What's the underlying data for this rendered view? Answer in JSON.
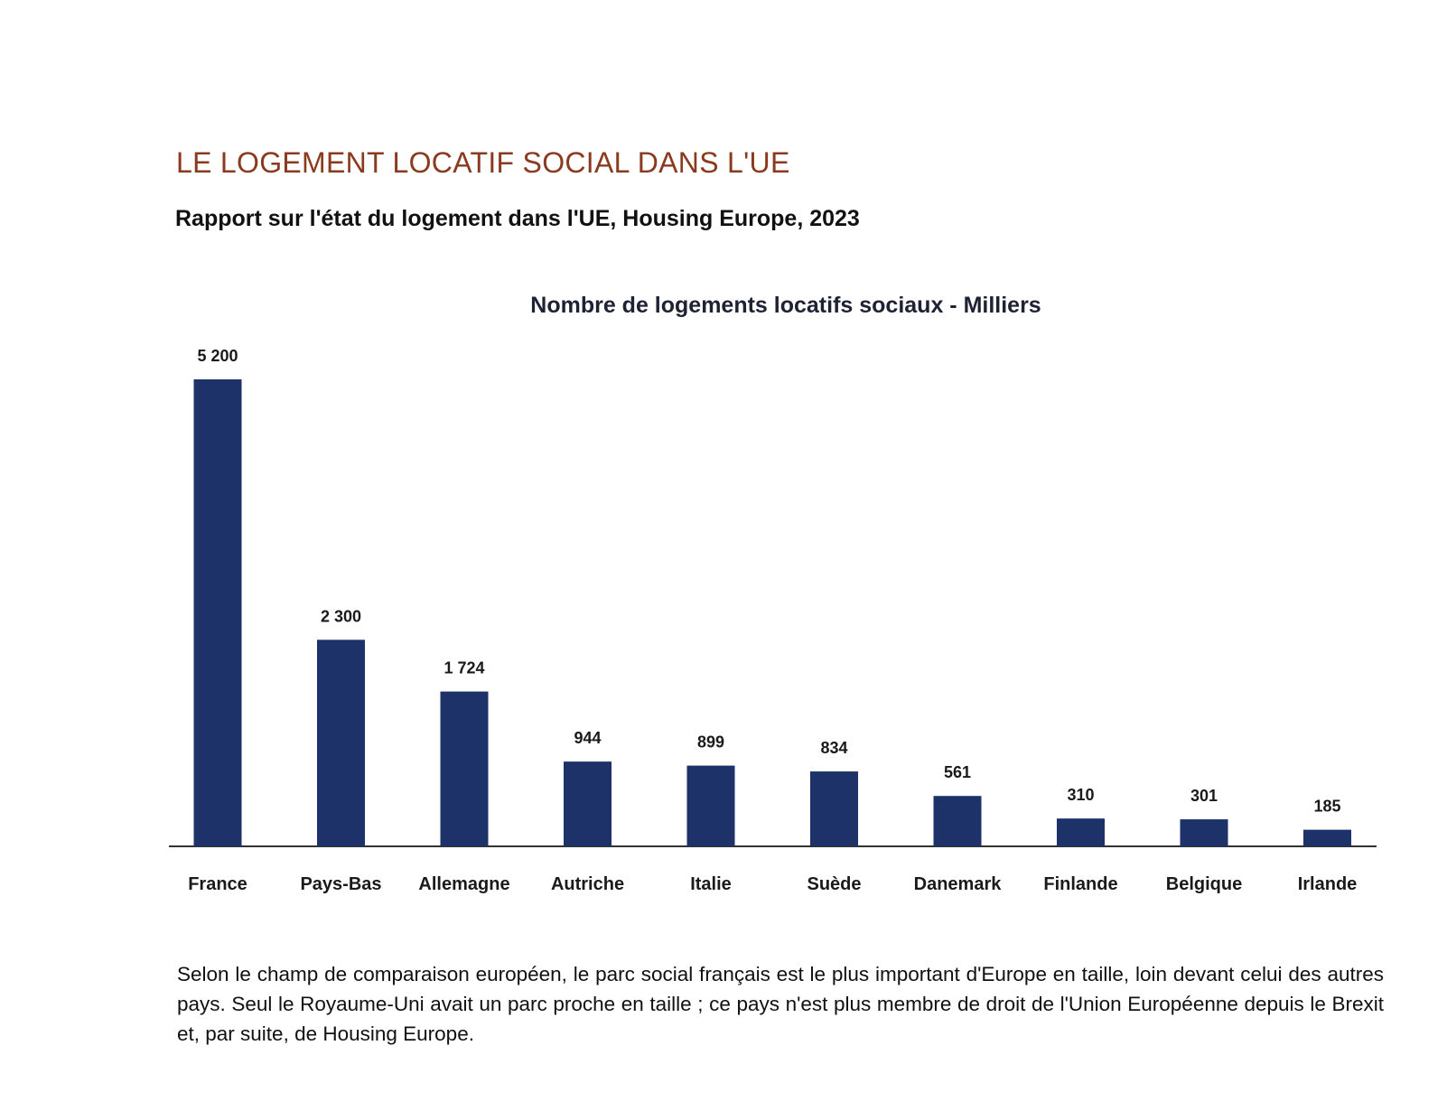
{
  "header": {
    "title": "LE LOGEMENT LOCATIF SOCIAL DANS L'UE",
    "subtitle": "Rapport sur l'état du logement dans l'UE, Housing Europe, 2023"
  },
  "chart_data": {
    "type": "bar",
    "title": "Nombre de logements locatifs sociaux - Milliers",
    "categories": [
      "France",
      "Pays-Bas",
      "Allemagne",
      "Autriche",
      "Italie",
      "Suède",
      "Danemark",
      "Finlande",
      "Belgique",
      "Irlande"
    ],
    "values": [
      5200,
      2300,
      1724,
      944,
      899,
      834,
      561,
      310,
      301,
      185
    ],
    "value_labels": [
      "5 200",
      "2 300",
      "1 724",
      "944",
      "899",
      "834",
      "561",
      "310",
      "301",
      "185"
    ],
    "xlabel": "",
    "ylabel": "",
    "ylim": [
      0,
      5200
    ],
    "grid": false,
    "y_axis_visible": false,
    "colors": {
      "bar": "#1c3268"
    }
  },
  "note": {
    "text": "Selon le champ de comparaison européen, le parc social français est le plus important d'Europe en taille, loin devant celui des autres pays. Seul le Royaume-Uni avait un parc proche en taille ; ce pays n'est plus membre de droit de l'Union Européenne depuis le Brexit et, par suite, de Housing Europe."
  },
  "colors": {
    "title": "#8a3a1e",
    "text": "#111111"
  }
}
